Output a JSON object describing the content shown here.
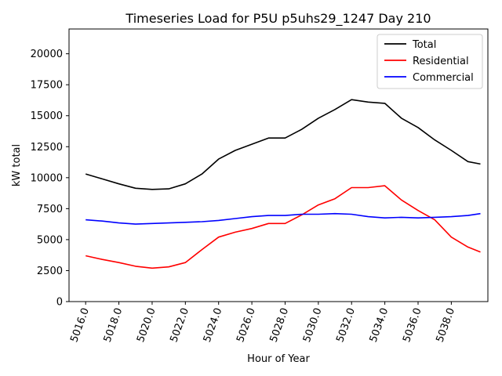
{
  "chart_data": {
    "type": "line",
    "title": "Timeseries Load for P5U p5uhs29_1247  Day 210",
    "xlabel": "Hour of Year",
    "ylabel": "kW total",
    "xlim": [
      5015.0,
      5040.2
    ],
    "ylim": [
      0,
      22000
    ],
    "xticks": [
      5016,
      5018,
      5020,
      5022,
      5024,
      5026,
      5028,
      5030,
      5032,
      5034,
      5036,
      5038
    ],
    "xtick_labels": [
      "5016.0",
      "5018.0",
      "5020.0",
      "5022.0",
      "5024.0",
      "5026.0",
      "5028.0",
      "5030.0",
      "5032.0",
      "5034.0",
      "5036.0",
      "5038.0"
    ],
    "yticks": [
      0,
      2500,
      5000,
      7500,
      10000,
      12500,
      15000,
      17500,
      20000
    ],
    "ytick_labels": [
      "0",
      "2500",
      "5000",
      "7500",
      "10000",
      "12500",
      "15000",
      "17500",
      "20000"
    ],
    "legend_position": "top-right",
    "x": [
      5016.0,
      5017.0,
      5018.0,
      5019.0,
      5020.0,
      5021.0,
      5022.0,
      5023.0,
      5024.0,
      5025.0,
      5026.0,
      5027.0,
      5028.0,
      5029.0,
      5030.0,
      5031.0,
      5032.0,
      5033.0,
      5034.0,
      5035.0,
      5036.0,
      5037.0,
      5038.0,
      5039.0,
      5039.75
    ],
    "series": [
      {
        "name": "Total",
        "color": "#000000",
        "values": [
          10300,
          9900,
          9500,
          9150,
          9050,
          9100,
          9500,
          10300,
          11500,
          12200,
          12700,
          13200,
          13200,
          13900,
          14800,
          15500,
          16300,
          16100,
          16000,
          14800,
          14050,
          13050,
          12200,
          11300,
          11100
        ]
      },
      {
        "name": "Residential",
        "color": "#ff0000",
        "values": [
          3700,
          3400,
          3150,
          2850,
          2700,
          2800,
          3150,
          4200,
          5200,
          5600,
          5900,
          6300,
          6300,
          7000,
          7800,
          8300,
          9200,
          9200,
          9350,
          8200,
          7350,
          6600,
          5200,
          4400,
          4000
        ]
      },
      {
        "name": "Commercial",
        "color": "#0000ff",
        "values": [
          6600,
          6500,
          6350,
          6250,
          6300,
          6350,
          6400,
          6450,
          6550,
          6700,
          6850,
          6950,
          6950,
          7050,
          7050,
          7100,
          7050,
          6850,
          6750,
          6800,
          6750,
          6800,
          6850,
          6950,
          7100
        ]
      }
    ]
  }
}
